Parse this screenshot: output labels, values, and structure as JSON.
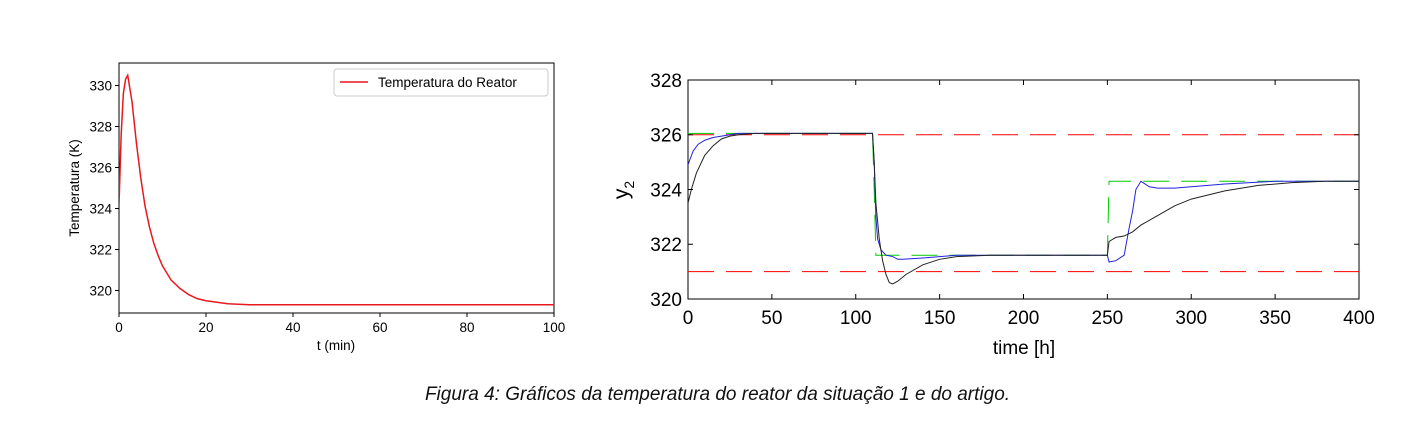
{
  "caption": "Figura 4: Gráficos da temperatura do reator da situação 1 e do artigo.",
  "chart_data": [
    {
      "type": "line",
      "title": "",
      "xlabel": "t (min)",
      "ylabel": "Temperatura (K)",
      "xlim": [
        0,
        100
      ],
      "ylim": [
        318.9,
        331.1
      ],
      "xticks": [
        0,
        20,
        40,
        60,
        80,
        100
      ],
      "yticks": [
        320,
        322,
        324,
        326,
        328,
        330
      ],
      "grid": false,
      "legend": "top-right",
      "series": [
        {
          "name": "Temperatura do Reator",
          "color": "#e8191d",
          "x": [
            0,
            0.5,
            1,
            1.5,
            2,
            3,
            4,
            5,
            6,
            7,
            8,
            9,
            10,
            12,
            14,
            16,
            18,
            20,
            25,
            30,
            40,
            50,
            60,
            80,
            100
          ],
          "y": [
            324.2,
            327.6,
            329.6,
            330.3,
            330.5,
            329.2,
            327.2,
            325.5,
            324.1,
            323.1,
            322.3,
            321.7,
            321.2,
            320.5,
            320.1,
            319.8,
            319.6,
            319.5,
            319.35,
            319.3,
            319.3,
            319.3,
            319.3,
            319.3,
            319.3
          ]
        }
      ]
    },
    {
      "type": "line",
      "title": "",
      "xlabel": "time [h]",
      "ylabel": "y",
      "ylabel_sub": "2",
      "xlim": [
        0,
        400
      ],
      "ylim": [
        320,
        328
      ],
      "xticks": [
        0,
        50,
        100,
        150,
        200,
        250,
        300,
        350,
        400
      ],
      "yticks": [
        320,
        322,
        324,
        326,
        328
      ],
      "grid": false,
      "legend": "none",
      "series": [
        {
          "color": "#ff0000",
          "style": "dashed",
          "x": [
            0,
            400
          ],
          "y": [
            326,
            326
          ]
        },
        {
          "color": "#ff0000",
          "style": "dashed",
          "x": [
            0,
            400
          ],
          "y": [
            321,
            321
          ]
        },
        {
          "color": "#00cc00",
          "style": "dashed",
          "x": [
            0,
            110,
            110,
            111,
            111,
            112,
            250,
            250,
            251,
            251,
            400
          ],
          "y": [
            326.05,
            326.05,
            326.05,
            324.0,
            324.0,
            321.6,
            321.6,
            321.6,
            324.3,
            324.3,
            324.3
          ]
        },
        {
          "color": "#2222dd",
          "style": "solid",
          "x": [
            0,
            3,
            6,
            10,
            15,
            20,
            25,
            30,
            40,
            60,
            80,
            100,
            110,
            111,
            112,
            113,
            115,
            118,
            122,
            125,
            128,
            140,
            160,
            200,
            250,
            251,
            255,
            260,
            263,
            265,
            267,
            270,
            275,
            280,
            290,
            300,
            320,
            350,
            400
          ],
          "y": [
            324.9,
            325.4,
            325.65,
            325.8,
            325.9,
            325.95,
            326.0,
            326.05,
            326.05,
            326.05,
            326.05,
            326.05,
            326.05,
            325.0,
            323.0,
            322.2,
            321.8,
            321.6,
            321.55,
            321.45,
            321.45,
            321.5,
            321.6,
            321.6,
            321.6,
            321.35,
            321.4,
            321.6,
            322.6,
            323.2,
            324.0,
            324.3,
            324.1,
            324.05,
            324.05,
            324.1,
            324.2,
            324.3,
            324.3
          ]
        },
        {
          "color": "#222222",
          "style": "solid",
          "x": [
            0,
            2,
            5,
            10,
            15,
            20,
            25,
            30,
            40,
            60,
            80,
            100,
            110,
            111,
            112,
            114,
            116,
            118,
            120,
            122,
            125,
            130,
            140,
            150,
            160,
            180,
            200,
            220,
            250,
            251,
            255,
            260,
            265,
            270,
            280,
            290,
            300,
            320,
            340,
            360,
            380,
            400
          ],
          "y": [
            323.5,
            324.0,
            324.6,
            325.25,
            325.6,
            325.85,
            325.95,
            326.0,
            326.05,
            326.05,
            326.05,
            326.05,
            326.05,
            325.0,
            323.5,
            322.2,
            321.4,
            320.9,
            320.6,
            320.55,
            320.65,
            320.9,
            321.25,
            321.45,
            321.55,
            321.6,
            321.6,
            321.6,
            321.6,
            322.1,
            322.25,
            322.3,
            322.45,
            322.7,
            323.05,
            323.4,
            323.65,
            323.95,
            324.15,
            324.25,
            324.3,
            324.3
          ]
        }
      ]
    }
  ]
}
